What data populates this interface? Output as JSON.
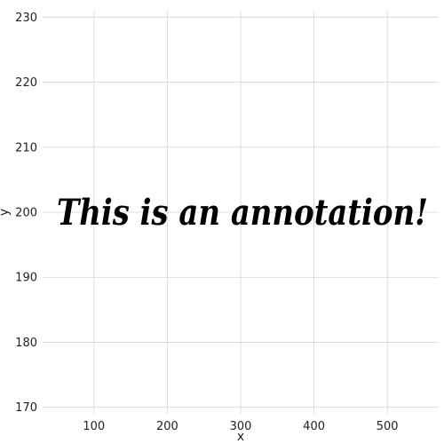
{
  "chart_data": {
    "type": "scatter",
    "title": "",
    "xlabel": "x",
    "ylabel": "y",
    "xlim": [
      30,
      570
    ],
    "ylim": [
      169,
      231
    ],
    "xticks": [
      100,
      200,
      300,
      400,
      500
    ],
    "yticks": [
      170,
      180,
      190,
      200,
      210,
      220,
      230
    ],
    "grid": true,
    "points": [],
    "annotations": [
      {
        "text": "This is an annotation!",
        "x": 300,
        "y": 200
      }
    ],
    "colors": {
      "grid": "#d4d4d4",
      "text": "#000000"
    }
  }
}
